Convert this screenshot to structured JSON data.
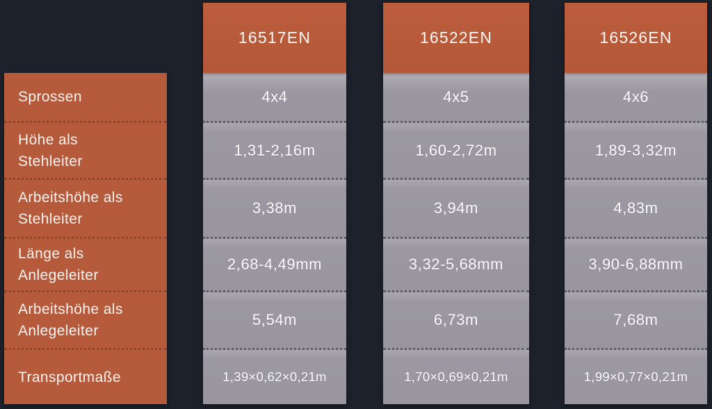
{
  "table": {
    "row_labels": [
      "Sprossen",
      "Höhe als Stehleiter",
      "Arbeitshöhe als Stehleiter",
      "Länge als Anlegeleiter",
      "Arbeitshöhe als Anlegeleiter",
      "Transportmaße"
    ],
    "products": [
      {
        "code": "16517EN",
        "values": [
          "4x4",
          "1,31-2,16m",
          "3,38m",
          "2,68-4,49mm",
          "5,54m",
          "1,39×0,62×0,21m"
        ]
      },
      {
        "code": "16522EN",
        "values": [
          "4x5",
          "1,60-2,72m",
          "3,94m",
          "3,32-5,68mm",
          "6,73m",
          "1,70×0,69×0,21m"
        ]
      },
      {
        "code": "16526EN",
        "values": [
          "4x6",
          "1,89-3,32m",
          "4,83m",
          "3,90-6,88mm",
          "7,68m",
          "1,99×0,77×0,21m"
        ]
      }
    ],
    "colors": {
      "background": "#1d212b",
      "accent_orange": "#b65a3c",
      "cell_gray": "#9a97a0",
      "separator_gray": "#5e5c66",
      "separator_orange": "#8a462f",
      "text": "#f8f6f7"
    }
  }
}
